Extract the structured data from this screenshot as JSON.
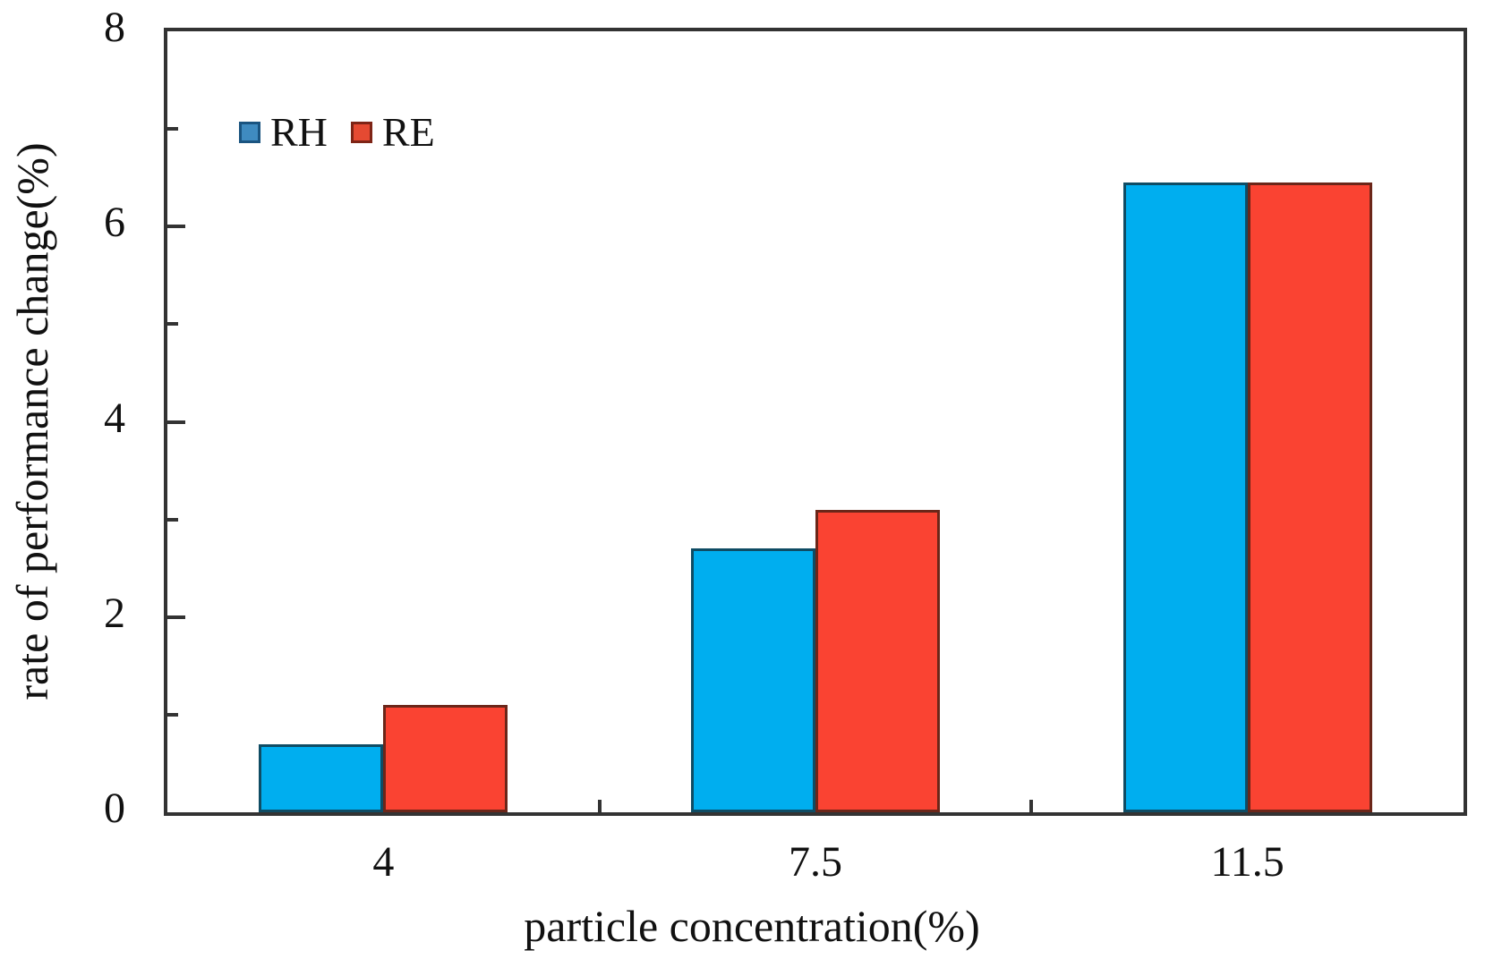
{
  "figure": {
    "background": "#ffffff"
  },
  "chart_data": {
    "type": "bar",
    "title": "",
    "categories": [
      "4",
      "7.5",
      "11.5"
    ],
    "series": [
      {
        "name": "RH",
        "color": "#00AEEF",
        "border_color": "#0F4C64",
        "values": [
          0.7,
          2.7,
          6.45
        ]
      },
      {
        "name": "RE",
        "color": "#FA4332",
        "border_color": "#6B2619",
        "values": [
          1.1,
          3.1,
          6.45
        ]
      }
    ],
    "xlabel": "particle concentration(%)",
    "ylabel": "rate of performance change(%)",
    "ylim": [
      0,
      8
    ],
    "yticks_major": [
      0,
      2,
      4,
      6,
      8
    ],
    "yticks_minor": [
      1,
      3,
      5,
      7
    ],
    "ytick_labels": [
      "0",
      "2",
      "4",
      "6",
      "8"
    ],
    "xticks_at_category_boundaries": true,
    "grid": false,
    "bar_outline": true,
    "axis_color": "#333333",
    "text_color": "#111111",
    "legend": {
      "position": "top-left-inside",
      "items": [
        {
          "label": "RH",
          "swatch_fill": "#3F8BC0",
          "swatch_border": "#1A5480"
        },
        {
          "label": "RE",
          "swatch_fill": "#E54A32",
          "swatch_border": "#7E2416"
        }
      ]
    }
  }
}
